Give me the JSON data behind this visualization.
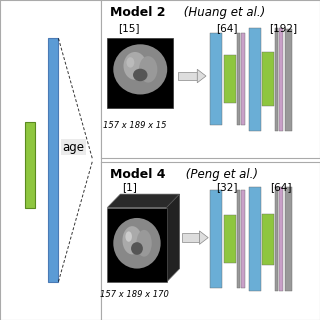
{
  "model2_title": "Model 2",
  "model2_author": " (Huang et al.)",
  "model4_title": "Model 4",
  "model4_author": " (Peng et al.)",
  "model2_input_label": "[15]",
  "model2_input_dims": "157 x 189 x 15",
  "model2_layer1_label": "[64]",
  "model2_layer2_label": "[192]",
  "model4_input_label": "[1]",
  "model4_input_dims": "157 x 189 x 170",
  "model4_layer1_label": "[32]",
  "model4_layer2_label": "[64]",
  "age_label": "age",
  "color_blue_bar": "#6aaed6",
  "color_green_bar": "#8ec63f",
  "color_gray_bar": "#999999",
  "color_purple_bar": "#c9a0c8",
  "color_left_blue": "#5b9bd5",
  "color_left_green": "#8ec63f",
  "bg": "#ffffff",
  "border_color": "#aaaaaa"
}
